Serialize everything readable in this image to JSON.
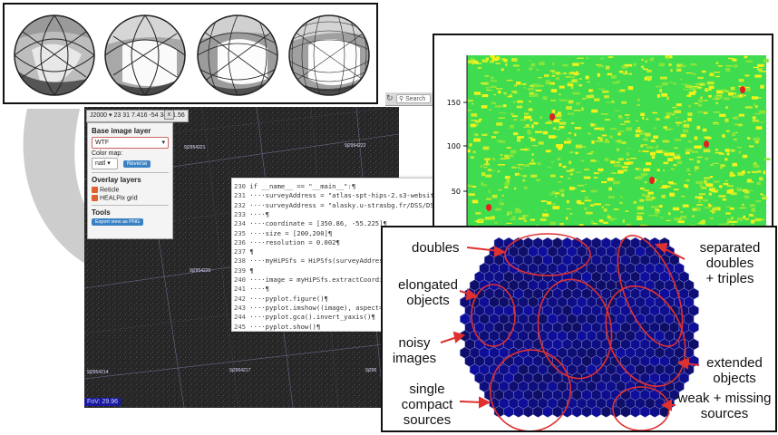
{
  "colors": {
    "sky_background": "#1f1f1f",
    "som_cell": "#12128a",
    "annotation": "#e03030",
    "arrow": "#c8c8c8"
  },
  "viewer": {
    "frame": "J2000",
    "coordinates": "23 31 7.416 -54 34 31.56",
    "close_label": "x",
    "fov": "FoV: 29.96",
    "observations": [
      "9j2954221",
      "9j2954222",
      "9j2954220",
      "9j2954214",
      "9j2954217",
      "9j295"
    ]
  },
  "layer_panel": {
    "base_heading": "Base image layer",
    "base_value": "WTF",
    "colormap_label": "Color map:",
    "colormap_value": "natl",
    "reverse_label": "Reverse",
    "overlay_heading": "Overlay layers",
    "overlays": [
      "Reticle",
      "HEALPix grid"
    ],
    "tools_heading": "Tools",
    "export_label": "Export view as PNG"
  },
  "browser": {
    "search_placeholder": "Search"
  },
  "code": {
    "lines": [
      {
        "n": "230",
        "t": "if __name__ == \"__main__\":¶"
      },
      {
        "n": "231",
        "t": "····surveyAddress = \"atlas-spt-hips-2.s3-website"
      },
      {
        "n": "232",
        "t": "····surveyAddress = \"alasky.u-strasbg.fr/DSS/DSS"
      },
      {
        "n": "233",
        "t": "····¶"
      },
      {
        "n": "234",
        "t": "····coordinate = [350.86, -55.225]¶"
      },
      {
        "n": "235",
        "t": "····size = [200,200]¶"
      },
      {
        "n": "236",
        "t": "····resolution = 0.002¶"
      },
      {
        "n": "237",
        "t": "¶"
      },
      {
        "n": "238",
        "t": "····myHiPSfs = HiPSfs(surveyAddress"
      },
      {
        "n": "239",
        "t": "¶"
      },
      {
        "n": "240",
        "t": "····image = myHiPSfs.extractCoordi"
      },
      {
        "n": "241",
        "t": "····¶"
      },
      {
        "n": "242",
        "t": "····pyplot.figure()¶"
      },
      {
        "n": "243",
        "t": "····pyplot.imshow((image), aspect="
      },
      {
        "n": "244",
        "t": "····pyplot.gca().invert_yaxis()¶"
      },
      {
        "n": "245",
        "t": "····pyplot.show()¶"
      }
    ]
  },
  "heatmap": {
    "y_ticks": [
      "150",
      "100",
      "50"
    ]
  },
  "som": {
    "labels": {
      "doubles": "doubles",
      "separated": "separated\ndoubles\n+ triples",
      "elongated": "elongated\nobjects",
      "noisy": "noisy\nimages",
      "extended": "extended\nobjects",
      "single": "single\ncompact\nsources",
      "weak": "weak + missing\nsources"
    }
  }
}
